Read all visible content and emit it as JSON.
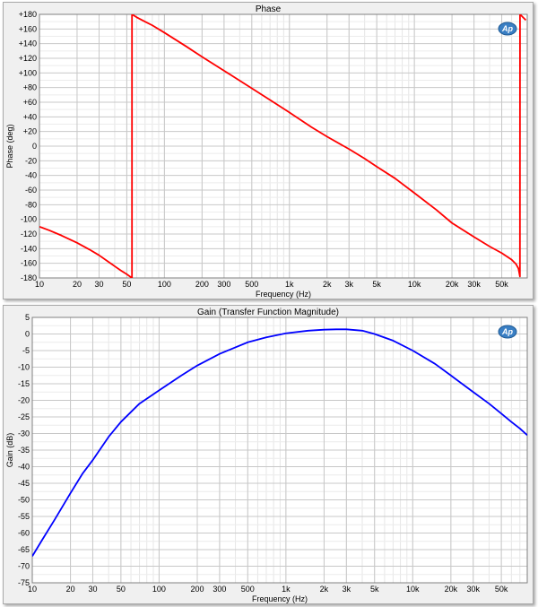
{
  "chart_data": [
    {
      "type": "line",
      "title": "Phase",
      "xlabel": "Frequency (Hz)",
      "ylabel": "Phase (deg)",
      "xscale": "log",
      "xlim": [
        10,
        80000
      ],
      "ylim": [
        -180,
        180
      ],
      "grid": true,
      "line_color": "#ff0000",
      "logo": "Ap",
      "x_ticks": [
        {
          "v": 10,
          "label": "10"
        },
        {
          "v": 20,
          "label": "20"
        },
        {
          "v": 30,
          "label": "30"
        },
        {
          "v": 50,
          "label": "50"
        },
        {
          "v": 100,
          "label": "100"
        },
        {
          "v": 200,
          "label": "200"
        },
        {
          "v": 300,
          "label": "300"
        },
        {
          "v": 500,
          "label": "500"
        },
        {
          "v": 1000,
          "label": "1k"
        },
        {
          "v": 2000,
          "label": "2k"
        },
        {
          "v": 3000,
          "label": "3k"
        },
        {
          "v": 5000,
          "label": "5k"
        },
        {
          "v": 10000,
          "label": "10k"
        },
        {
          "v": 20000,
          "label": "20k"
        },
        {
          "v": 30000,
          "label": "30k"
        },
        {
          "v": 50000,
          "label": "50k"
        }
      ],
      "y_ticks": [
        {
          "v": 180,
          "label": "+180"
        },
        {
          "v": 160,
          "label": "+160"
        },
        {
          "v": 140,
          "label": "+140"
        },
        {
          "v": 120,
          "label": "+120"
        },
        {
          "v": 100,
          "label": "+100"
        },
        {
          "v": 80,
          "label": "+80"
        },
        {
          "v": 60,
          "label": "+60"
        },
        {
          "v": 40,
          "label": "+40"
        },
        {
          "v": 20,
          "label": "+20"
        },
        {
          "v": 0,
          "label": "0"
        },
        {
          "v": -20,
          "label": "-20"
        },
        {
          "v": -40,
          "label": "-40"
        },
        {
          "v": -60,
          "label": "-60"
        },
        {
          "v": -80,
          "label": "-80"
        },
        {
          "v": -100,
          "label": "-100"
        },
        {
          "v": -120,
          "label": "-120"
        },
        {
          "v": -140,
          "label": "-140"
        },
        {
          "v": -160,
          "label": "-160"
        },
        {
          "v": -180,
          "label": "-180"
        }
      ],
      "series": [
        {
          "x": [
            10,
            12,
            15,
            20,
            25,
            30,
            35,
            40,
            45,
            50,
            55,
            55.01,
            60,
            70,
            80,
            100,
            150,
            200,
            300,
            500,
            700,
            1000,
            1500,
            2000,
            3000,
            4000,
            5000,
            7000,
            10000,
            15000,
            20000,
            30000,
            40000,
            50000,
            60000,
            65000,
            68000,
            69900,
            70000,
            72000,
            75000,
            78000
          ],
          "y": [
            -110,
            -115,
            -122,
            -132,
            -141,
            -149,
            -157,
            -164,
            -170,
            -175,
            -180,
            180,
            176,
            170,
            165,
            155,
            136,
            122,
            103,
            79,
            63,
            46,
            26,
            13,
            -4,
            -17,
            -28,
            -44,
            -64,
            -87,
            -105,
            -124,
            -137,
            -146,
            -155,
            -161,
            -167,
            -178,
            180,
            178,
            175,
            172
          ]
        }
      ]
    },
    {
      "type": "line",
      "title": "Gain (Transfer Function Magnitude)",
      "xlabel": "Frequency (Hz)",
      "ylabel": "Gain (dB)",
      "xscale": "log",
      "xlim": [
        10,
        80000
      ],
      "ylim": [
        -75,
        5
      ],
      "grid": true,
      "line_color": "#0000ff",
      "logo": "Ap",
      "x_ticks": [
        {
          "v": 10,
          "label": "10"
        },
        {
          "v": 20,
          "label": "20"
        },
        {
          "v": 30,
          "label": "30"
        },
        {
          "v": 50,
          "label": "50"
        },
        {
          "v": 100,
          "label": "100"
        },
        {
          "v": 200,
          "label": "200"
        },
        {
          "v": 300,
          "label": "300"
        },
        {
          "v": 500,
          "label": "500"
        },
        {
          "v": 1000,
          "label": "1k"
        },
        {
          "v": 2000,
          "label": "2k"
        },
        {
          "v": 3000,
          "label": "3k"
        },
        {
          "v": 5000,
          "label": "5k"
        },
        {
          "v": 10000,
          "label": "10k"
        },
        {
          "v": 20000,
          "label": "20k"
        },
        {
          "v": 30000,
          "label": "30k"
        },
        {
          "v": 50000,
          "label": "50k"
        }
      ],
      "y_ticks": [
        {
          "v": 5,
          "label": "5"
        },
        {
          "v": 0,
          "label": "0"
        },
        {
          "v": -5,
          "label": "-5"
        },
        {
          "v": -10,
          "label": "-10"
        },
        {
          "v": -15,
          "label": "-15"
        },
        {
          "v": -20,
          "label": "-20"
        },
        {
          "v": -25,
          "label": "-25"
        },
        {
          "v": -30,
          "label": "-30"
        },
        {
          "v": -35,
          "label": "-35"
        },
        {
          "v": -40,
          "label": "-40"
        },
        {
          "v": -45,
          "label": "-45"
        },
        {
          "v": -50,
          "label": "-50"
        },
        {
          "v": -55,
          "label": "-55"
        },
        {
          "v": -60,
          "label": "-60"
        },
        {
          "v": -65,
          "label": "-65"
        },
        {
          "v": -70,
          "label": "-70"
        },
        {
          "v": -75,
          "label": "-75"
        }
      ],
      "series": [
        {
          "x": [
            10,
            12,
            15,
            20,
            25,
            30,
            40,
            50,
            70,
            100,
            150,
            200,
            300,
            500,
            700,
            1000,
            1500,
            2000,
            2500,
            3000,
            4000,
            5000,
            7000,
            10000,
            15000,
            20000,
            30000,
            40000,
            50000,
            60000,
            70000,
            80000
          ],
          "y": [
            -67,
            -62,
            -56,
            -48,
            -42,
            -38,
            -31,
            -26.5,
            -21,
            -17,
            -12.5,
            -9.5,
            -6,
            -2.5,
            -1,
            0.2,
            1,
            1.3,
            1.4,
            1.4,
            1,
            0,
            -2,
            -5,
            -9,
            -12.5,
            -17.5,
            -21,
            -24,
            -26.5,
            -28.5,
            -30.5
          ]
        }
      ]
    }
  ]
}
